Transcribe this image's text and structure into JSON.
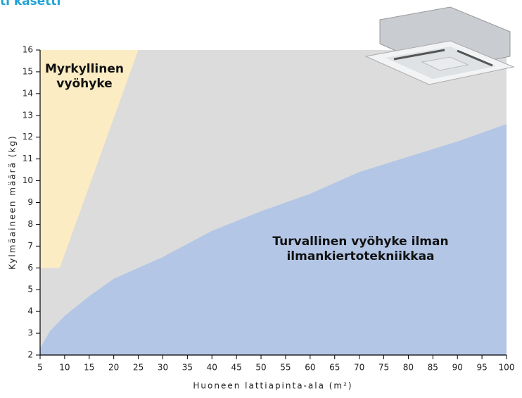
{
  "chart_data": {
    "type": "area",
    "title": "ti kasetti",
    "x_label": "Huoneen lattiapinta-ala (m²)",
    "y_label": "Kylmäaineen määrä (kg)",
    "plot_background": "#dcdcdc",
    "xlim": [
      5,
      100
    ],
    "xticks": [
      5,
      10,
      15,
      20,
      25,
      30,
      35,
      40,
      45,
      50,
      55,
      60,
      65,
      70,
      75,
      80,
      85,
      90,
      95,
      100
    ],
    "ylim": [
      2,
      16
    ],
    "yticks": [
      2,
      3,
      4,
      5,
      6,
      7,
      8,
      9,
      10,
      11,
      12,
      13,
      14,
      15,
      16
    ],
    "series": [
      {
        "name": "Myrkyllinen vyöhyke",
        "color": "#fbecc4",
        "fill_to": "top",
        "x": [
          5,
          9,
          25
        ],
        "values": [
          6,
          6,
          16
        ]
      },
      {
        "name": "Turvallinen vyöhyke ilman ilmankiertotekniikkaa",
        "color": "#b3c6e6",
        "fill_to": "bottom",
        "x": [
          5,
          7,
          10,
          15,
          20,
          25,
          30,
          40,
          50,
          60,
          70,
          80,
          90,
          100
        ],
        "values": [
          2.3,
          3.1,
          3.8,
          4.7,
          5.5,
          6.0,
          6.5,
          7.7,
          8.6,
          9.4,
          10.4,
          11.1,
          11.8,
          12.6
        ]
      }
    ]
  }
}
